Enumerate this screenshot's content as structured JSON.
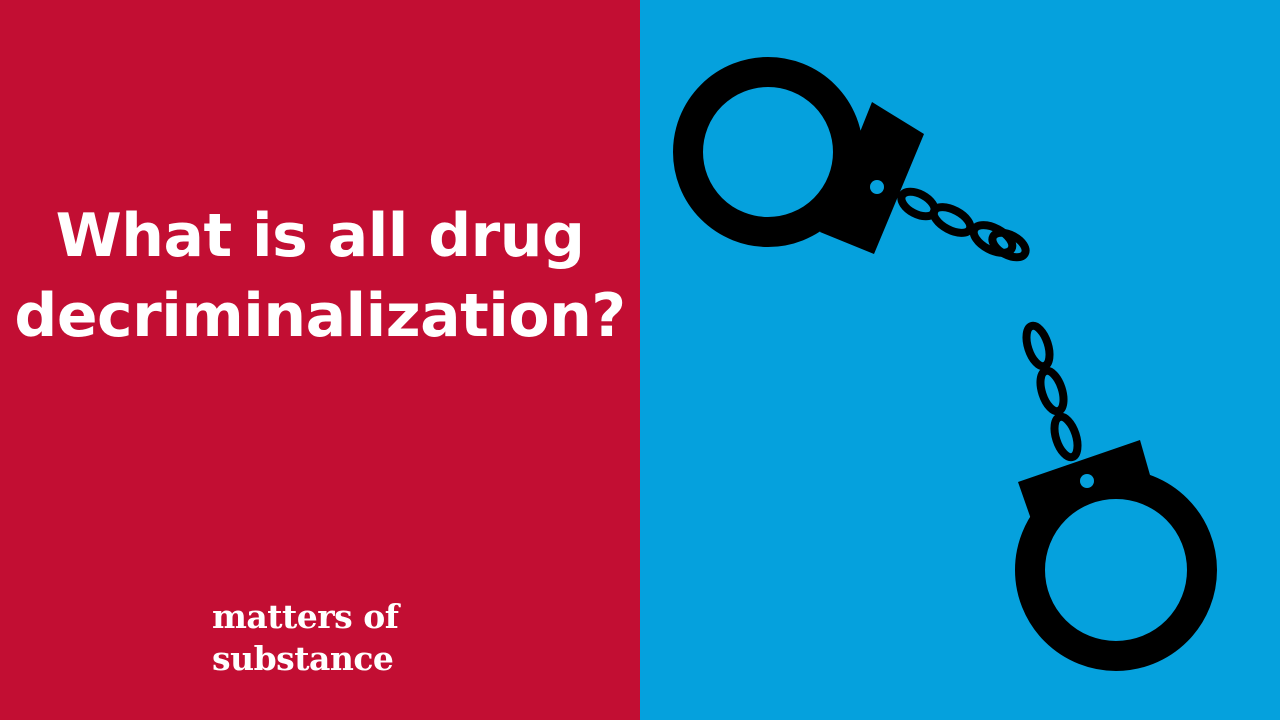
{
  "colors": {
    "left_background": "#c20e33",
    "right_background": "#05a1dd",
    "text": "#ffffff",
    "artwork": "#000000"
  },
  "headline": {
    "line1": "What is all drug",
    "line2": "decriminalization?"
  },
  "brand": {
    "line1": "matters of",
    "line2": "substance"
  },
  "illustration": {
    "icon": "broken-handcuffs-icon"
  }
}
